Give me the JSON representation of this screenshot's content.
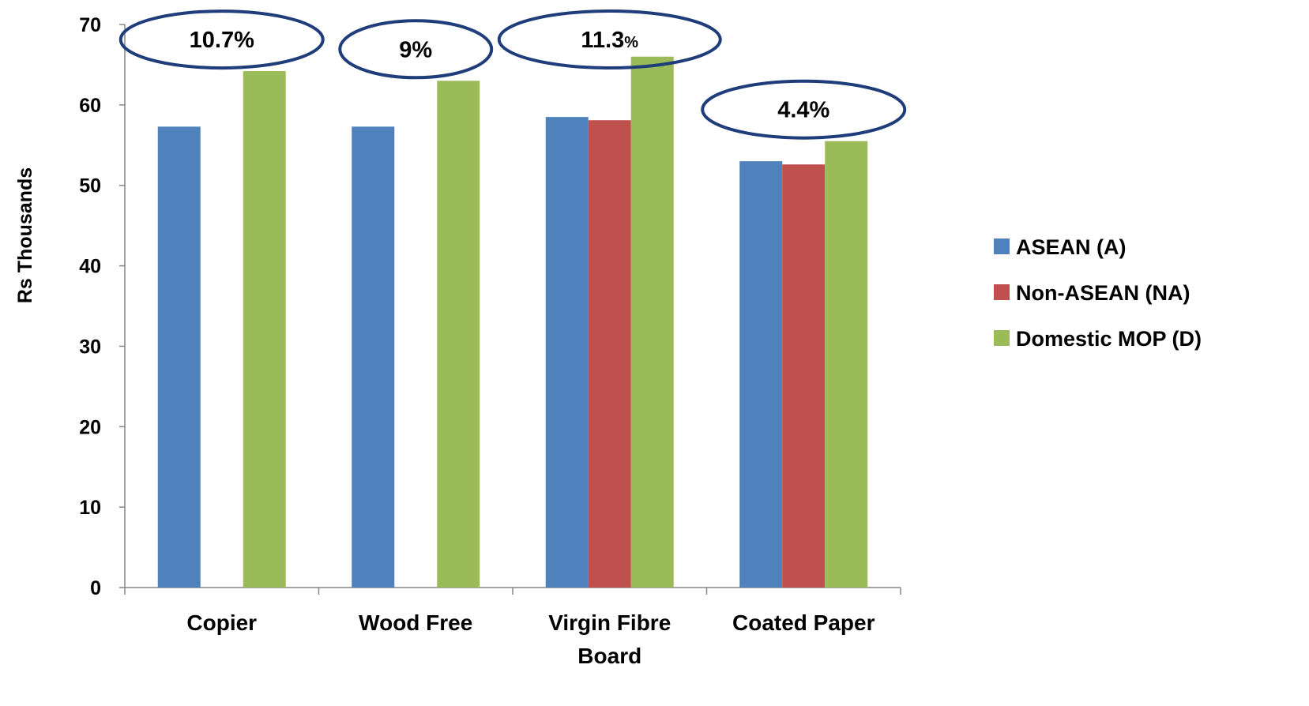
{
  "chart_data": {
    "type": "bar",
    "ylabel": "Rs Thousands",
    "ylim": [
      0,
      70
    ],
    "yticks": [
      0,
      10,
      20,
      30,
      40,
      50,
      60,
      70
    ],
    "categories": [
      [
        "Copier"
      ],
      [
        "Wood Free"
      ],
      [
        "Virgin Fibre",
        "Board"
      ],
      [
        "Coated Paper"
      ]
    ],
    "series": [
      {
        "name": "ASEAN (A)",
        "color": "#4F81BD",
        "values": [
          57.3,
          57.3,
          58.5,
          53.0
        ]
      },
      {
        "name": "Non-ASEAN (NA)",
        "color": "#C0504D",
        "values": [
          null,
          null,
          58.1,
          52.6
        ]
      },
      {
        "name": "Domestic MOP (D)",
        "color": "#9BBB59",
        "values": [
          64.2,
          63.0,
          66.0,
          55.5
        ]
      }
    ],
    "annotations": [
      {
        "category_index": 0,
        "main": "10.7%",
        "suffix": ""
      },
      {
        "category_index": 1,
        "main": "9%",
        "suffix": ""
      },
      {
        "category_index": 2,
        "main": "11.3",
        "suffix": "%"
      },
      {
        "category_index": 3,
        "main": "4.4%",
        "suffix": ""
      }
    ],
    "annotation_color": "#1F3D7A",
    "legend_position": "right",
    "grid": false
  }
}
